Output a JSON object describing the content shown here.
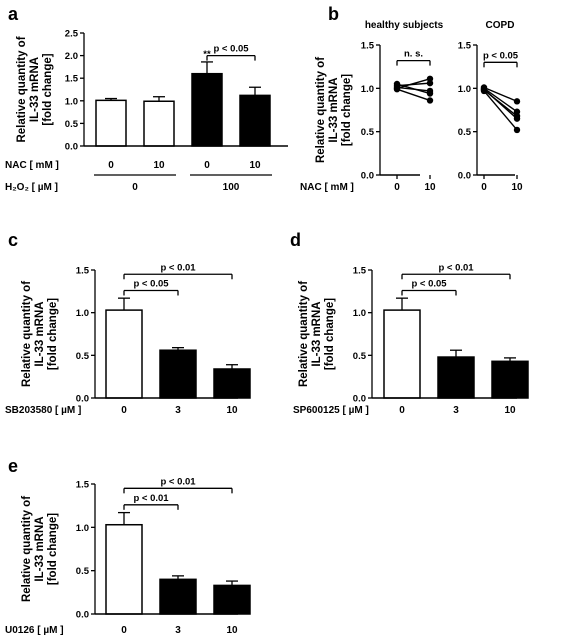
{
  "panel_labels": [
    "a",
    "b",
    "c",
    "d",
    "e"
  ],
  "chart_data": [
    {
      "id": "a",
      "type": "bar",
      "ylabel": [
        "Relative quantity of",
        "IL-33 mRNA",
        "[fold change]"
      ],
      "ylim": [
        0,
        2.5
      ],
      "yticks": [
        "0.0",
        "0.5",
        "1.0",
        "1.5",
        "2.0",
        "2.5"
      ],
      "row_labels": [
        "NAC [ mM ]",
        "H₂O₂ [ µM ]"
      ],
      "categories": [
        "0",
        "10",
        "0",
        "10"
      ],
      "groups": [
        {
          "label": "0",
          "from": 0,
          "to": 1
        },
        {
          "label": "100",
          "from": 2,
          "to": 3
        }
      ],
      "values": [
        1.01,
        0.99,
        1.6,
        1.12
      ],
      "errors": [
        0.04,
        0.1,
        0.26,
        0.18
      ],
      "fill": [
        "white",
        "white",
        "black",
        "black"
      ],
      "annotations": [
        {
          "text": "**",
          "bar": 2
        }
      ],
      "comparisons": [
        {
          "text": "p < 0.05",
          "from": 2,
          "to": 3,
          "y": 2.0
        }
      ]
    },
    {
      "id": "b-healthy",
      "type": "line",
      "title": "healthy subjects",
      "ylabel": [
        "Relative quantity of",
        "IL-33 mRNA",
        "[fold change]"
      ],
      "ylim": [
        0,
        1.5
      ],
      "yticks": [
        "0.0",
        "0.5",
        "1.0",
        "1.5"
      ],
      "xlabel": "NAC [ mM ]",
      "x": [
        "0",
        "10"
      ],
      "series": [
        {
          "values": [
            1.0,
            1.11
          ]
        },
        {
          "values": [
            1.03,
            1.06
          ]
        },
        {
          "values": [
            1.01,
            0.97
          ]
        },
        {
          "values": [
            1.05,
            0.94
          ]
        },
        {
          "values": [
            0.99,
            0.86
          ]
        }
      ],
      "comparisons": [
        {
          "text": "n. s.",
          "from": 0,
          "to": 1,
          "y": 1.32
        }
      ]
    },
    {
      "id": "b-copd",
      "type": "line",
      "title": "COPD",
      "ylim": [
        0,
        1.5
      ],
      "yticks": [
        "0.0",
        "0.5",
        "1.0",
        "1.5"
      ],
      "x": [
        "0",
        "10"
      ],
      "series": [
        {
          "values": [
            1.01,
            0.85
          ]
        },
        {
          "values": [
            1.0,
            0.73
          ]
        },
        {
          "values": [
            0.98,
            0.68
          ]
        },
        {
          "values": [
            0.99,
            0.65
          ]
        },
        {
          "values": [
            0.97,
            0.52
          ]
        }
      ],
      "comparisons": [
        {
          "text": "p < 0.05",
          "from": 0,
          "to": 1,
          "y": 1.3
        }
      ]
    },
    {
      "id": "c",
      "type": "bar",
      "ylabel": [
        "Relative quantity of",
        "IL-33 mRNA",
        "[fold change]"
      ],
      "ylim": [
        0,
        1.5
      ],
      "yticks": [
        "0.0",
        "0.5",
        "1.0",
        "1.5"
      ],
      "row_labels": [
        "SB203580 [ µM ]"
      ],
      "categories": [
        "0",
        "3",
        "10"
      ],
      "values": [
        1.03,
        0.56,
        0.34
      ],
      "errors": [
        0.14,
        0.03,
        0.05
      ],
      "fill": [
        "white",
        "black",
        "black"
      ],
      "comparisons": [
        {
          "text": "p < 0.01",
          "from": 0,
          "to": 2,
          "y": 1.45
        },
        {
          "text": "p < 0.05",
          "from": 0,
          "to": 1,
          "y": 1.26
        }
      ]
    },
    {
      "id": "d",
      "type": "bar",
      "ylabel": [
        "Relative quantity of",
        "IL-33 mRNA",
        "[fold change]"
      ],
      "ylim": [
        0,
        1.5
      ],
      "yticks": [
        "0.0",
        "0.5",
        "1.0",
        "1.5"
      ],
      "row_labels": [
        "SP600125 [ µM ]"
      ],
      "categories": [
        "0",
        "3",
        "10"
      ],
      "values": [
        1.03,
        0.48,
        0.43
      ],
      "errors": [
        0.14,
        0.08,
        0.04
      ],
      "fill": [
        "white",
        "black",
        "black"
      ],
      "comparisons": [
        {
          "text": "p < 0.01",
          "from": 0,
          "to": 2,
          "y": 1.45
        },
        {
          "text": "p < 0.05",
          "from": 0,
          "to": 1,
          "y": 1.26
        }
      ]
    },
    {
      "id": "e",
      "type": "bar",
      "ylabel": [
        "Relative quantity of",
        "IL-33 mRNA",
        "[fold change]"
      ],
      "ylim": [
        0,
        1.5
      ],
      "yticks": [
        "0.0",
        "0.5",
        "1.0",
        "1.5"
      ],
      "row_labels": [
        "U0126 [ µM ]"
      ],
      "categories": [
        "0",
        "3",
        "10"
      ],
      "values": [
        1.03,
        0.4,
        0.33
      ],
      "errors": [
        0.14,
        0.04,
        0.05
      ],
      "fill": [
        "white",
        "black",
        "black"
      ],
      "comparisons": [
        {
          "text": "p < 0.01",
          "from": 0,
          "to": 2,
          "y": 1.45
        },
        {
          "text": "p < 0.01",
          "from": 0,
          "to": 1,
          "y": 1.26
        }
      ]
    }
  ]
}
